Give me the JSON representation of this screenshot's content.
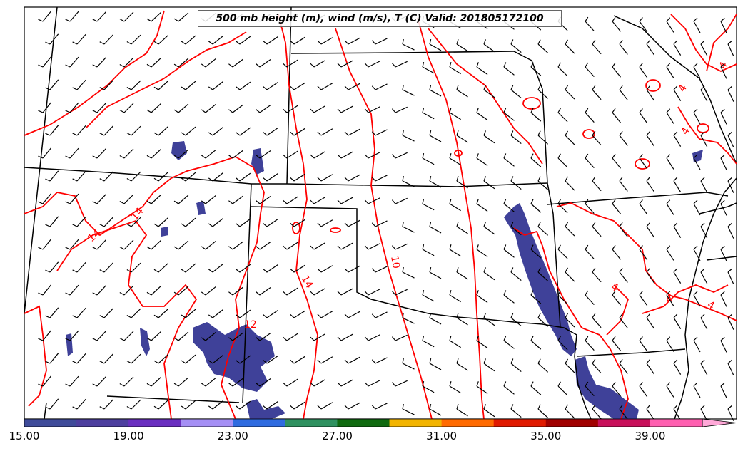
{
  "title": "500 mb height (m), wind (m/s), T (C) Valid: 201805172100",
  "colorbar": {
    "tick_labels": [
      "15.00",
      "19.00",
      "23.00",
      "27.00",
      "31.00",
      "35.00",
      "39.00"
    ],
    "colors": [
      "#3f4b9a",
      "#4d3f9f",
      "#6a2fc0",
      "#a58ff5",
      "#2f6be0",
      "#2f9160",
      "#0f6a10",
      "#f2b400",
      "#ff6a00",
      "#e01a00",
      "#a00000",
      "#c8105a",
      "#ff5fb0",
      "#ffa8d8"
    ]
  },
  "contour_labels": [
    "14",
    "14",
    "14",
    "10",
    "12",
    "4",
    "4",
    "4",
    "4",
    "4",
    "4"
  ],
  "colors": {
    "contour": "#ff0000",
    "shading": "#3f4199",
    "boundaries": "#000000"
  }
}
